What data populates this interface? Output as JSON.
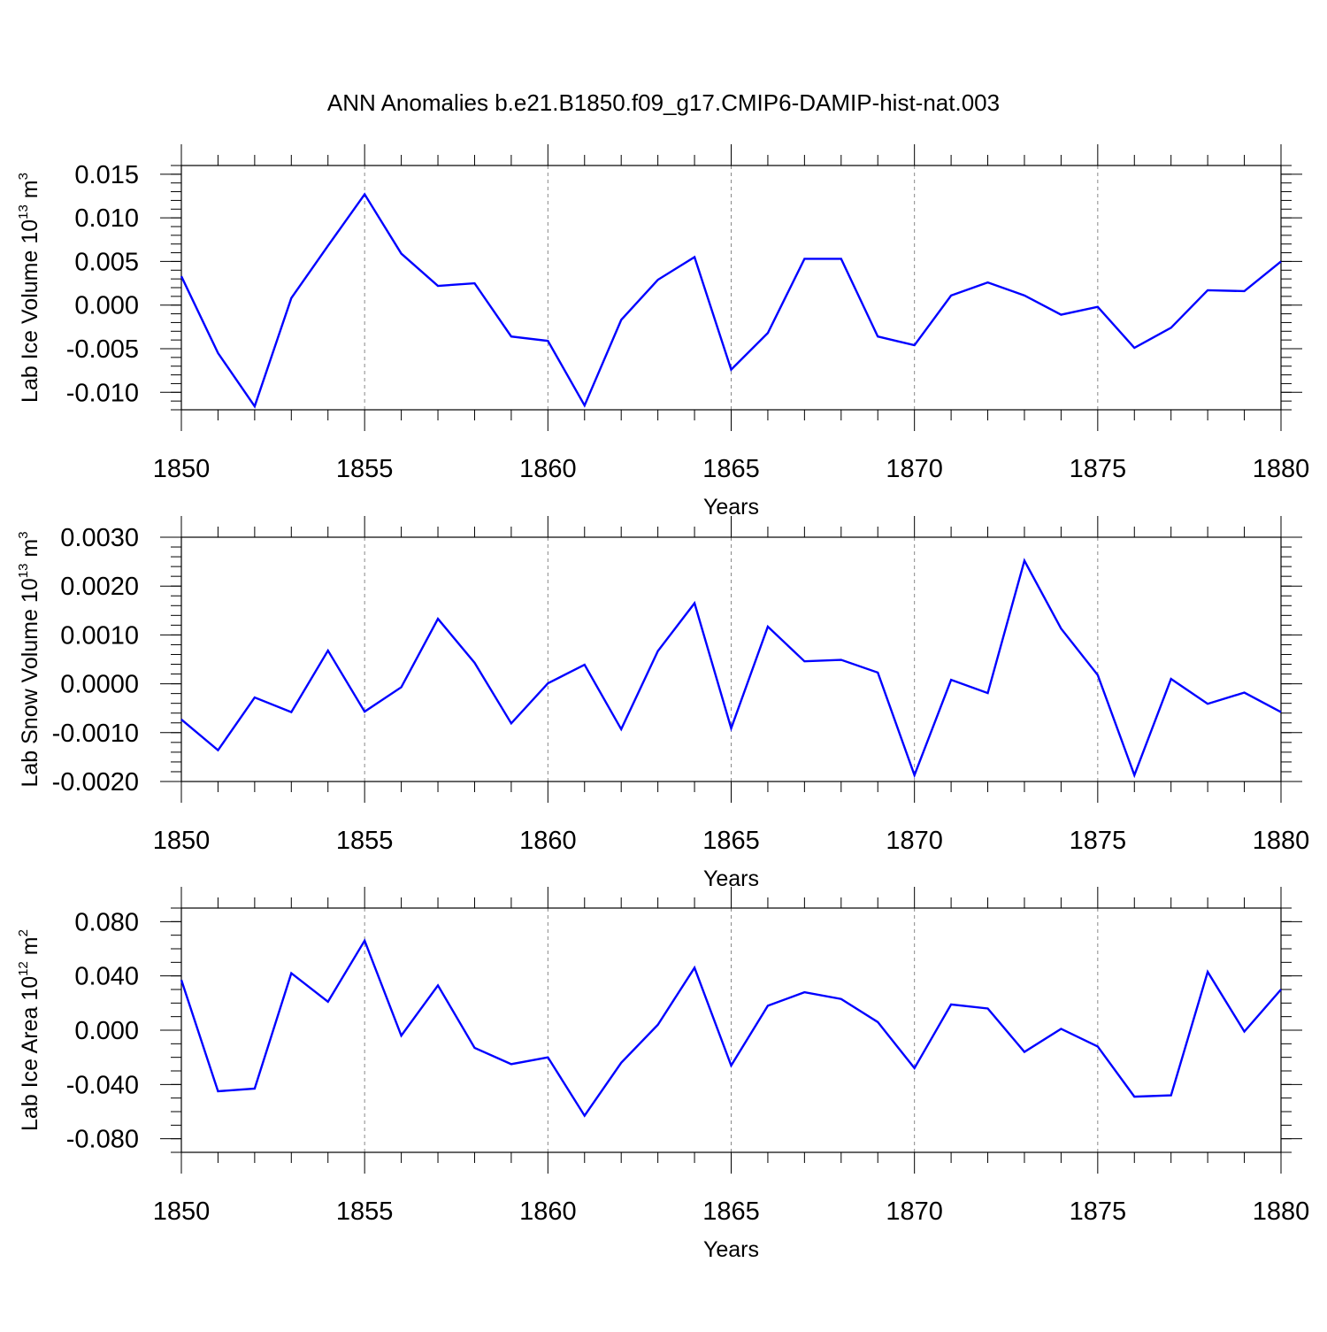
{
  "title": "ANN Anomalies b.e21.B1850.f09_g17.CMIP6-DAMIP-hist-nat.003",
  "colors": {
    "line": "#0000ff",
    "grid": "#888888",
    "axis": "#000000"
  },
  "chart_data": [
    {
      "type": "line",
      "xlabel": "Years",
      "ylabel": {
        "prefix": "Lab Ice Volume 10",
        "exp": "13",
        "unit": " m",
        "unit_exp": "3"
      },
      "xlim": [
        1850,
        1880
      ],
      "ylim": [
        -0.012,
        0.016
      ],
      "x_ticks": [
        "1850",
        "1855",
        "1860",
        "1865",
        "1870",
        "1875",
        "1880"
      ],
      "y_ticks": [
        {
          "v": 0.015,
          "label": "0.015"
        },
        {
          "v": 0.01,
          "label": "0.010"
        },
        {
          "v": 0.005,
          "label": "0.005"
        },
        {
          "v": 0.0,
          "label": "0.000"
        },
        {
          "v": -0.005,
          "label": "-0.005"
        },
        {
          "v": -0.01,
          "label": "-0.010"
        }
      ],
      "y_minor_step": 0.001,
      "x": [
        1850,
        1851,
        1852,
        1853,
        1854,
        1855,
        1856,
        1857,
        1858,
        1859,
        1860,
        1861,
        1862,
        1863,
        1864,
        1865,
        1866,
        1867,
        1868,
        1869,
        1870,
        1871,
        1872,
        1873,
        1874,
        1875,
        1876,
        1877,
        1878,
        1879,
        1880
      ],
      "values": [
        0.0033,
        -0.0055,
        -0.0116,
        0.0008,
        0.0068,
        0.0127,
        0.0059,
        0.0022,
        0.0025,
        -0.0036,
        -0.0041,
        -0.0115,
        -0.0017,
        0.0029,
        0.0055,
        -0.0074,
        -0.0032,
        0.0053,
        0.0053,
        -0.0036,
        -0.0046,
        0.0011,
        0.0026,
        0.0011,
        -0.0011,
        -0.0002,
        -0.0049,
        -0.0026,
        0.0017,
        0.0016,
        0.005
      ]
    },
    {
      "type": "line",
      "xlabel": "Years",
      "ylabel": {
        "prefix": "Lab Snow Volume 10",
        "exp": "13",
        "unit": " m",
        "unit_exp": "3"
      },
      "xlim": [
        1850,
        1880
      ],
      "ylim": [
        -0.002,
        0.003
      ],
      "x_ticks": [
        "1850",
        "1855",
        "1860",
        "1865",
        "1870",
        "1875",
        "1880"
      ],
      "y_ticks": [
        {
          "v": 0.003,
          "label": "0.0030"
        },
        {
          "v": 0.002,
          "label": "0.0020"
        },
        {
          "v": 0.001,
          "label": "0.0010"
        },
        {
          "v": 0.0,
          "label": "0.0000"
        },
        {
          "v": -0.001,
          "label": "-0.0010"
        },
        {
          "v": -0.002,
          "label": "-0.0020"
        }
      ],
      "y_minor_step": 0.0002,
      "x": [
        1850,
        1851,
        1852,
        1853,
        1854,
        1855,
        1856,
        1857,
        1858,
        1859,
        1860,
        1861,
        1862,
        1863,
        1864,
        1865,
        1866,
        1867,
        1868,
        1869,
        1870,
        1871,
        1872,
        1873,
        1874,
        1875,
        1876,
        1877,
        1878,
        1879,
        1880
      ],
      "values": [
        -0.00073,
        -0.00136,
        -0.00028,
        -0.00058,
        0.00068,
        -0.00057,
        -7e-05,
        0.00133,
        0.00043,
        -0.00081,
        1e-05,
        0.00039,
        -0.00093,
        0.00067,
        0.00165,
        -0.00091,
        0.00117,
        0.00046,
        0.00049,
        0.00023,
        -0.00187,
        8e-05,
        -0.00019,
        0.00252,
        0.00113,
        0.00018,
        -0.00187,
        0.0001,
        -0.00041,
        -0.00018,
        -0.00058
      ]
    },
    {
      "type": "line",
      "xlabel": "Years",
      "ylabel": {
        "prefix": "Lab Ice Area 10",
        "exp": "12",
        "unit": " m",
        "unit_exp": "2"
      },
      "xlim": [
        1850,
        1880
      ],
      "ylim": [
        -0.09,
        0.09
      ],
      "x_ticks": [
        "1850",
        "1855",
        "1860",
        "1865",
        "1870",
        "1875",
        "1880"
      ],
      "y_ticks": [
        {
          "v": 0.08,
          "label": "0.080"
        },
        {
          "v": 0.04,
          "label": "0.040"
        },
        {
          "v": 0.0,
          "label": "0.000"
        },
        {
          "v": -0.04,
          "label": "-0.040"
        },
        {
          "v": -0.08,
          "label": "-0.080"
        }
      ],
      "y_minor_step": 0.01,
      "x": [
        1850,
        1851,
        1852,
        1853,
        1854,
        1855,
        1856,
        1857,
        1858,
        1859,
        1860,
        1861,
        1862,
        1863,
        1864,
        1865,
        1866,
        1867,
        1868,
        1869,
        1870,
        1871,
        1872,
        1873,
        1874,
        1875,
        1876,
        1877,
        1878,
        1879,
        1880
      ],
      "values": [
        0.037,
        -0.045,
        -0.043,
        0.042,
        0.021,
        0.066,
        -0.004,
        0.033,
        -0.013,
        -0.025,
        -0.02,
        -0.063,
        -0.024,
        0.004,
        0.046,
        -0.026,
        0.018,
        0.028,
        0.023,
        0.006,
        -0.028,
        0.019,
        0.016,
        -0.016,
        0.001,
        -0.012,
        -0.049,
        -0.048,
        0.043,
        -0.001,
        0.03
      ]
    }
  ]
}
